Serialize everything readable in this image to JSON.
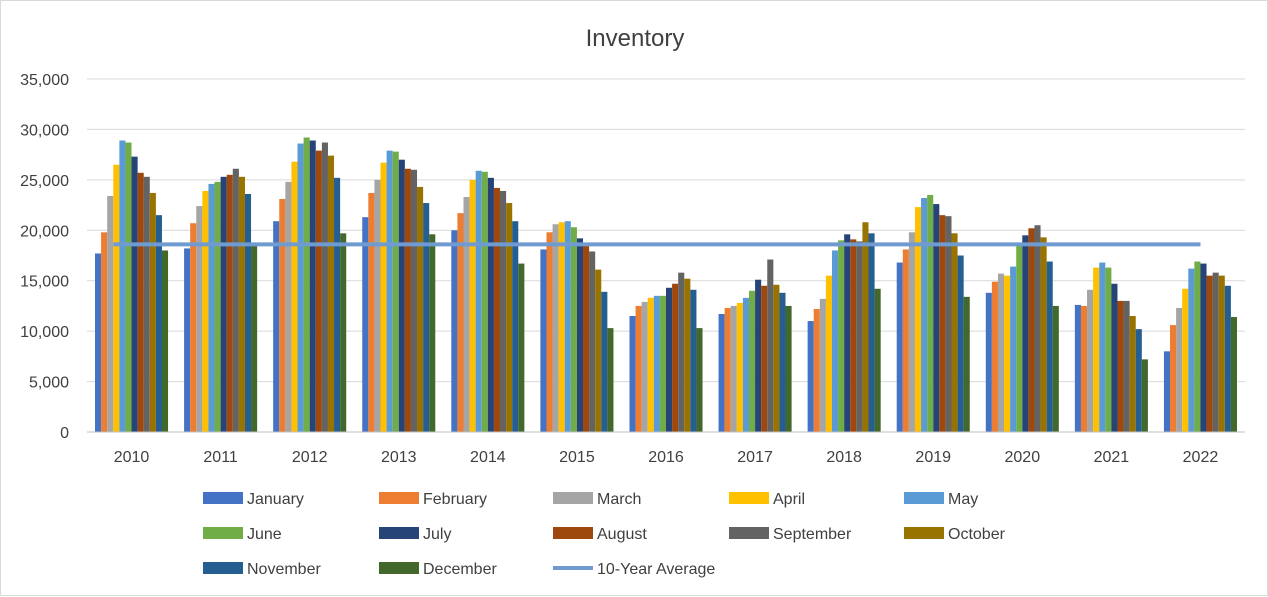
{
  "chart_data": {
    "type": "bar",
    "title": "Inventory",
    "xlabel": "",
    "ylabel": "",
    "ylim": [
      0,
      35000
    ],
    "yticks": [
      0,
      5000,
      10000,
      15000,
      20000,
      25000,
      30000,
      35000
    ],
    "ytick_labels": [
      "0",
      "5,000",
      "10,000",
      "15,000",
      "20,000",
      "25,000",
      "30,000",
      "35,000"
    ],
    "grid": true,
    "legend_position": "bottom",
    "categories": [
      "2010",
      "2011",
      "2012",
      "2013",
      "2014",
      "2015",
      "2016",
      "2017",
      "2018",
      "2019",
      "2020",
      "2021",
      "2022"
    ],
    "series": [
      {
        "name": "January",
        "color": "#4472c4",
        "values": [
          17700,
          18200,
          20900,
          21300,
          20000,
          18100,
          11500,
          11700,
          11000,
          16800,
          13800,
          12600,
          8000
        ]
      },
      {
        "name": "February",
        "color": "#ed7d31",
        "values": [
          19800,
          20700,
          23100,
          23700,
          21700,
          19800,
          12500,
          12300,
          12200,
          18100,
          14900,
          12500,
          10600
        ]
      },
      {
        "name": "March",
        "color": "#a5a5a5",
        "values": [
          23400,
          22400,
          24800,
          25000,
          23300,
          20600,
          12900,
          12500,
          13200,
          19800,
          15700,
          14100,
          12300
        ]
      },
      {
        "name": "April",
        "color": "#ffc000",
        "values": [
          26500,
          23900,
          26800,
          26700,
          25000,
          20800,
          13300,
          12800,
          15500,
          22300,
          15500,
          16300,
          14200
        ]
      },
      {
        "name": "May",
        "color": "#5b9bd5",
        "values": [
          28900,
          24600,
          28600,
          27900,
          25900,
          20900,
          13500,
          13300,
          18000,
          23200,
          16400,
          16800,
          16200
        ]
      },
      {
        "name": "June",
        "color": "#70ad47",
        "values": [
          28700,
          24800,
          29200,
          27800,
          25800,
          20300,
          13500,
          14000,
          19000,
          23500,
          18600,
          16300,
          16900
        ]
      },
      {
        "name": "July",
        "color": "#264478",
        "values": [
          27300,
          25300,
          28900,
          27000,
          25200,
          19200,
          14300,
          15100,
          19600,
          22600,
          19500,
          14700,
          16700
        ]
      },
      {
        "name": "August",
        "color": "#9e480e",
        "values": [
          25700,
          25500,
          27900,
          26100,
          24200,
          18500,
          14700,
          14500,
          19100,
          21500,
          20200,
          13000,
          15500
        ]
      },
      {
        "name": "September",
        "color": "#636363",
        "values": [
          25300,
          26100,
          28700,
          26000,
          23900,
          17900,
          15800,
          17100,
          18900,
          21400,
          20500,
          13000,
          15800
        ]
      },
      {
        "name": "October",
        "color": "#997300",
        "values": [
          23700,
          25300,
          27400,
          24300,
          22700,
          16100,
          15200,
          14600,
          20800,
          19700,
          19300,
          11500,
          15500
        ]
      },
      {
        "name": "November",
        "color": "#255e91",
        "values": [
          21500,
          23600,
          25200,
          22700,
          20900,
          13900,
          14100,
          13800,
          19700,
          17500,
          16900,
          10200,
          14500
        ]
      },
      {
        "name": "December",
        "color": "#43682b",
        "values": [
          18000,
          18500,
          19700,
          19600,
          16700,
          10300,
          10300,
          12500,
          14200,
          13400,
          12500,
          7200,
          11400
        ]
      }
    ],
    "reference_line": {
      "name": "10-Year Average",
      "color": "#6f9bd1",
      "value": 18600
    }
  }
}
